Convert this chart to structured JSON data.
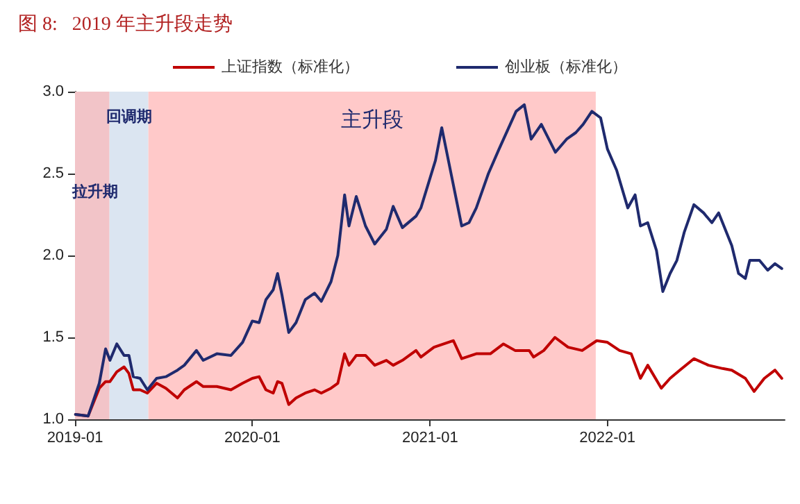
{
  "chart_data": {
    "type": "line",
    "title": "图 8:   2019 年主升段走势",
    "xlim": [
      "2019-01-01",
      "2023-01-01"
    ],
    "xticks": [
      {
        "value": "2019-01",
        "label": "2019-01"
      },
      {
        "value": "2020-01",
        "label": "2020-01"
      },
      {
        "value": "2021-01",
        "label": "2021-01"
      },
      {
        "value": "2022-01",
        "label": "2022-01"
      }
    ],
    "ylim": [
      1,
      3
    ],
    "yticks": [
      {
        "value": 1,
        "label": "1.0"
      },
      {
        "value": 1.5,
        "label": "1.5"
      },
      {
        "value": 2,
        "label": "2.0"
      },
      {
        "value": 2.5,
        "label": "2.5"
      },
      {
        "value": 3,
        "label": "3.0"
      }
    ],
    "grid": false,
    "legend": "top",
    "marker": "none",
    "line_style": "solid",
    "bands": [
      {
        "axis": "x",
        "from": "2019-01-01",
        "to": "2019-03-13",
        "label": "拉升期",
        "color": "#f2c4c8"
      },
      {
        "axis": "x",
        "from": "2019-03-13",
        "to": "2019-06-01",
        "label": "回调期",
        "color": "#dbe5f1"
      },
      {
        "axis": "x",
        "from": "2019-06-01",
        "to": "2021-12-08",
        "label": "主升段",
        "color": "#ffc9c9"
      }
    ],
    "series": [
      {
        "name": "上证指数（标准化）",
        "color": "#c00000",
        "x": [
          "2019-01-02",
          "2019-01-28",
          "2019-02-20",
          "2019-03-05",
          "2019-03-14",
          "2019-03-28",
          "2019-04-12",
          "2019-04-22",
          "2019-05-01",
          "2019-05-15",
          "2019-05-30",
          "2019-06-18",
          "2019-07-07",
          "2019-07-31",
          "2019-08-14",
          "2019-09-08",
          "2019-09-22",
          "2019-10-20",
          "2019-11-18",
          "2019-12-12",
          "2020-01-01",
          "2020-01-15",
          "2020-01-29",
          "2020-02-13",
          "2020-02-22",
          "2020-03-02",
          "2020-03-16",
          "2020-03-31",
          "2020-04-19",
          "2020-05-08",
          "2020-05-22",
          "2020-06-11",
          "2020-06-25",
          "2020-07-09",
          "2020-07-18",
          "2020-08-02",
          "2020-08-21",
          "2020-09-09",
          "2020-10-03",
          "2020-10-17",
          "2020-11-05",
          "2020-12-03",
          "2020-12-13",
          "2021-01-09",
          "2021-02-18",
          "2021-03-07",
          "2021-04-06",
          "2021-05-05",
          "2021-06-01",
          "2021-06-25",
          "2021-07-24",
          "2021-08-02",
          "2021-08-23",
          "2021-09-15",
          "2021-10-12",
          "2021-11-10",
          "2021-12-10",
          "2022-01-01",
          "2022-01-26",
          "2022-02-19",
          "2022-03-10",
          "2022-03-25",
          "2022-04-22",
          "2022-05-10",
          "2022-05-30",
          "2022-06-28",
          "2022-07-28",
          "2022-08-26",
          "2022-09-14",
          "2022-10-12",
          "2022-10-30",
          "2022-11-20",
          "2022-12-12",
          "2022-12-26"
        ],
        "values": [
          1.03,
          1.02,
          1.19,
          1.23,
          1.23,
          1.29,
          1.32,
          1.28,
          1.18,
          1.18,
          1.16,
          1.22,
          1.19,
          1.13,
          1.18,
          1.23,
          1.2,
          1.2,
          1.18,
          1.22,
          1.25,
          1.26,
          1.18,
          1.16,
          1.23,
          1.22,
          1.09,
          1.13,
          1.16,
          1.18,
          1.16,
          1.19,
          1.22,
          1.4,
          1.33,
          1.39,
          1.39,
          1.33,
          1.36,
          1.33,
          1.36,
          1.42,
          1.38,
          1.44,
          1.48,
          1.37,
          1.4,
          1.4,
          1.46,
          1.42,
          1.42,
          1.38,
          1.42,
          1.5,
          1.44,
          1.42,
          1.48,
          1.47,
          1.42,
          1.4,
          1.25,
          1.33,
          1.19,
          1.25,
          1.3,
          1.37,
          1.33,
          1.31,
          1.3,
          1.25,
          1.17,
          1.25,
          1.3,
          1.25
        ]
      },
      {
        "name": "创业板（标准化）",
        "color": "#1f2a6e",
        "x": [
          "2019-01-02",
          "2019-01-28",
          "2019-02-20",
          "2019-03-05",
          "2019-03-14",
          "2019-03-28",
          "2019-04-12",
          "2019-04-22",
          "2019-05-01",
          "2019-05-15",
          "2019-05-30",
          "2019-06-18",
          "2019-07-07",
          "2019-07-31",
          "2019-08-14",
          "2019-09-08",
          "2019-09-22",
          "2019-10-20",
          "2019-11-18",
          "2019-12-12",
          "2020-01-01",
          "2020-01-15",
          "2020-01-29",
          "2020-02-13",
          "2020-02-22",
          "2020-03-02",
          "2020-03-16",
          "2020-03-31",
          "2020-04-19",
          "2020-05-08",
          "2020-05-22",
          "2020-06-11",
          "2020-06-25",
          "2020-07-09",
          "2020-07-18",
          "2020-08-02",
          "2020-08-21",
          "2020-09-09",
          "2020-10-03",
          "2020-10-17",
          "2020-11-05",
          "2020-12-03",
          "2020-12-13",
          "2021-01-12",
          "2021-01-25",
          "2021-03-07",
          "2021-03-22",
          "2021-04-06",
          "2021-05-01",
          "2021-05-23",
          "2021-06-27",
          "2021-07-14",
          "2021-07-28",
          "2021-08-18",
          "2021-09-16",
          "2021-10-09",
          "2021-10-28",
          "2021-11-12",
          "2021-11-30",
          "2021-12-18",
          "2022-01-01",
          "2022-01-20",
          "2022-02-12",
          "2022-02-27",
          "2022-03-10",
          "2022-03-25",
          "2022-04-12",
          "2022-04-25",
          "2022-05-10",
          "2022-05-24",
          "2022-06-08",
          "2022-06-28",
          "2022-07-18",
          "2022-08-04",
          "2022-08-18",
          "2022-09-14",
          "2022-09-28",
          "2022-10-12",
          "2022-10-21",
          "2022-11-10",
          "2022-11-27",
          "2022-12-12",
          "2022-12-26"
        ],
        "values": [
          1.03,
          1.02,
          1.22,
          1.43,
          1.36,
          1.46,
          1.39,
          1.39,
          1.26,
          1.25,
          1.18,
          1.25,
          1.26,
          1.3,
          1.33,
          1.42,
          1.36,
          1.4,
          1.39,
          1.47,
          1.6,
          1.59,
          1.73,
          1.79,
          1.89,
          1.76,
          1.53,
          1.59,
          1.73,
          1.77,
          1.72,
          1.84,
          2.0,
          2.37,
          2.18,
          2.36,
          2.18,
          2.07,
          2.16,
          2.3,
          2.17,
          2.24,
          2.29,
          2.58,
          2.78,
          2.18,
          2.2,
          2.29,
          2.5,
          2.65,
          2.88,
          2.92,
          2.71,
          2.8,
          2.63,
          2.71,
          2.75,
          2.8,
          2.88,
          2.84,
          2.65,
          2.52,
          2.29,
          2.37,
          2.18,
          2.2,
          2.03,
          1.78,
          1.89,
          1.97,
          2.14,
          2.31,
          2.26,
          2.2,
          2.26,
          2.06,
          1.89,
          1.86,
          1.97,
          1.97,
          1.91,
          1.95,
          1.92
        ]
      }
    ]
  }
}
